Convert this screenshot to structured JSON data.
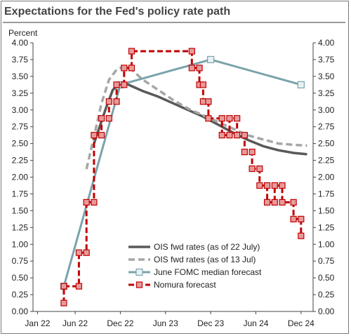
{
  "chart_data": {
    "type": "line",
    "title": "Expectations for the Fed's policy rate path",
    "ylabel": "Percent",
    "xlabel": "",
    "ylim": [
      0,
      4
    ],
    "yticks": [
      "0.00",
      "0.25",
      "0.50",
      "0.75",
      "1.00",
      "1.25",
      "1.50",
      "1.75",
      "2.00",
      "2.25",
      "2.50",
      "2.75",
      "3.00",
      "3.25",
      "3.50",
      "3.75",
      "4.00"
    ],
    "xticks": [
      {
        "label": "Jan 22",
        "m": 0
      },
      {
        "label": "Jun 22",
        "m": 5
      },
      {
        "label": "Dec 22",
        "m": 11
      },
      {
        "label": "Jun 23",
        "m": 17
      },
      {
        "label": "Dec 23",
        "m": 23
      },
      {
        "label": "Jun 24",
        "m": 29
      },
      {
        "label": "Dec 24",
        "m": 35
      }
    ],
    "legend_position": "bottom-center",
    "series": [
      {
        "name": "OIS fwd rates (as of 22 July)",
        "style": "solid",
        "color": "#595959",
        "points": [
          [
            7.5,
            2.5
          ],
          [
            9,
            3.0
          ],
          [
            10,
            3.3
          ],
          [
            11,
            3.39
          ],
          [
            12,
            3.38
          ],
          [
            14,
            3.28
          ],
          [
            16,
            3.2
          ],
          [
            18,
            3.1
          ],
          [
            20,
            3.0
          ],
          [
            22,
            2.9
          ],
          [
            24,
            2.78
          ],
          [
            26,
            2.66
          ],
          [
            28,
            2.55
          ],
          [
            30,
            2.46
          ],
          [
            32,
            2.4
          ],
          [
            34,
            2.36
          ],
          [
            35.8,
            2.34
          ]
        ]
      },
      {
        "name": "OIS fwd rates (as of 13 Jul)",
        "style": "dashed",
        "color": "#a6a6a6",
        "points": [
          [
            6.5,
            2.12
          ],
          [
            7.5,
            2.6
          ],
          [
            8.5,
            3.1
          ],
          [
            9.5,
            3.45
          ],
          [
            10.5,
            3.6
          ],
          [
            11.5,
            3.65
          ],
          [
            12.5,
            3.6
          ],
          [
            14,
            3.45
          ],
          [
            16,
            3.3
          ],
          [
            18,
            3.15
          ],
          [
            20,
            3.02
          ],
          [
            22,
            2.92
          ],
          [
            24,
            2.82
          ],
          [
            26,
            2.72
          ],
          [
            28,
            2.62
          ],
          [
            30,
            2.56
          ],
          [
            32,
            2.5
          ],
          [
            34,
            2.48
          ],
          [
            35.8,
            2.47
          ]
        ]
      },
      {
        "name": "June FOMC median forecast",
        "style": "solid-marker",
        "color": "#7aa3ab",
        "points": [
          [
            3.5,
            0.375
          ],
          [
            11,
            3.375
          ],
          [
            23,
            3.75
          ],
          [
            35,
            3.375
          ]
        ]
      },
      {
        "name": "Nomura forecast",
        "style": "dashed-step-marker",
        "color": "#c00000",
        "points": [
          [
            3.5,
            0.125
          ],
          [
            3.5,
            0.375
          ],
          [
            5.5,
            0.375
          ],
          [
            5.5,
            0.875
          ],
          [
            6.5,
            0.875
          ],
          [
            6.5,
            1.625
          ],
          [
            7.5,
            1.625
          ],
          [
            7.5,
            2.625
          ],
          [
            8.5,
            2.625
          ],
          [
            8.5,
            2.875
          ],
          [
            9.5,
            2.875
          ],
          [
            9.5,
            3.125
          ],
          [
            10.5,
            3.125
          ],
          [
            10.5,
            3.375
          ],
          [
            11.5,
            3.375
          ],
          [
            11.5,
            3.625
          ],
          [
            12.5,
            3.625
          ],
          [
            12.5,
            3.875
          ],
          [
            20.5,
            3.875
          ],
          [
            20.5,
            3.625
          ],
          [
            21.5,
            3.625
          ],
          [
            21.5,
            3.375
          ],
          [
            22,
            3.375
          ],
          [
            22,
            3.125
          ],
          [
            22.7,
            3.125
          ],
          [
            22.7,
            2.875
          ],
          [
            24.5,
            2.875
          ],
          [
            24.5,
            2.625
          ],
          [
            25.5,
            2.625
          ],
          [
            25.5,
            2.875
          ],
          [
            26.5,
            2.875
          ],
          [
            26.5,
            2.625
          ],
          [
            27.5,
            2.625
          ],
          [
            27.5,
            2.375
          ],
          [
            28.5,
            2.375
          ],
          [
            28.5,
            2.125
          ],
          [
            29.5,
            2.125
          ],
          [
            29.5,
            1.875
          ],
          [
            30.5,
            1.875
          ],
          [
            30.5,
            1.625
          ],
          [
            31.5,
            1.625
          ],
          [
            31.5,
            1.875
          ],
          [
            32.5,
            1.875
          ],
          [
            32.5,
            1.625
          ],
          [
            34,
            1.625
          ],
          [
            34,
            1.375
          ],
          [
            35,
            1.375
          ],
          [
            35,
            1.125
          ]
        ]
      }
    ]
  }
}
